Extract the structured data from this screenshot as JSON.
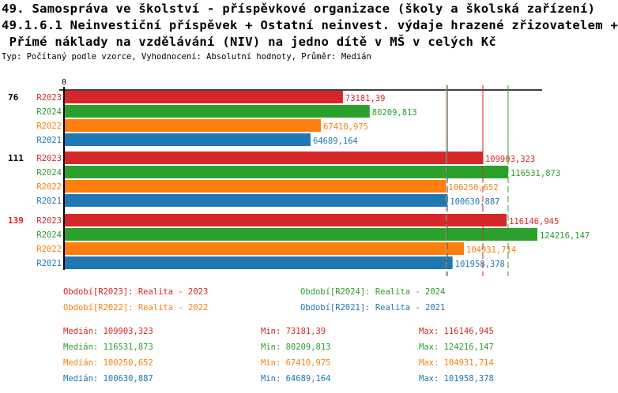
{
  "title_lines": [
    "49. Samospráva ve školství - příspěvkové organizace (školy a školská zařízení)",
    "49.1.6.1 Neinvestiční příspěvek + Ostatní neinvest. výdaje hrazené zřizovatelem +",
    " Přímé náklady na vzdělávání (NIV) na jedno dítě v MŠ v celých Kč"
  ],
  "subtitle": "Typ: Počítaný podle vzorce, Vyhodnocení: Absolutní hodnoty, Průměr: Medián",
  "colors": {
    "R2023": "#d62728",
    "R2024": "#2ca02c",
    "R2022": "#ff7f0e",
    "R2021": "#1f77b4"
  },
  "chart_data": {
    "type": "bar",
    "orientation": "horizontal",
    "axis_zero_label": "0",
    "xlim": [
      0,
      126000
    ],
    "categories": [
      "76",
      "111",
      "139"
    ],
    "highlighted_category": "139",
    "series": [
      {
        "name": "R2023",
        "values": [
          73181.39,
          109903.323,
          116146.945
        ],
        "labels": [
          "73181,39",
          "109903,323",
          "116146,945"
        ]
      },
      {
        "name": "R2024",
        "values": [
          80209.813,
          116531.873,
          124216.147
        ],
        "labels": [
          "80209,813",
          "116531,873",
          "124216,147"
        ]
      },
      {
        "name": "R2022",
        "values": [
          67410.975,
          100250.652,
          104931.714
        ],
        "labels": [
          "67410,975",
          "100250,652",
          "104931,714"
        ]
      },
      {
        "name": "R2021",
        "values": [
          64689.164,
          100630.887,
          101958.378
        ],
        "labels": [
          "64689,164",
          "100630,887",
          "101958,378"
        ]
      }
    ],
    "median_lines": {
      "R2023": 109903.323,
      "R2024": 116531.873,
      "R2022": 100250.652,
      "R2021": 100630.887
    }
  },
  "legend": [
    {
      "series": "R2023",
      "text": "Období[R2023]: Realita - 2023"
    },
    {
      "series": "R2024",
      "text": "Období[R2024]: Realita - 2024"
    },
    {
      "series": "R2022",
      "text": "Období[R2022]: Realita - 2022"
    },
    {
      "series": "R2021",
      "text": "Období[R2021]: Realita - 2021"
    }
  ],
  "stats": [
    {
      "series": "R2023",
      "median": "Medián: 109903,323",
      "min": "Min: 73181,39",
      "max": "Max: 116146,945"
    },
    {
      "series": "R2024",
      "median": "Medián: 116531,873",
      "min": "Min: 80209,813",
      "max": "Max: 124216,147"
    },
    {
      "series": "R2022",
      "median": "Medián: 100250,652",
      "min": "Min: 67410,975",
      "max": "Max: 104931,714"
    },
    {
      "series": "R2021",
      "median": "Medián: 100630,887",
      "min": "Min: 64689,164",
      "max": "Max: 101958,378"
    }
  ]
}
